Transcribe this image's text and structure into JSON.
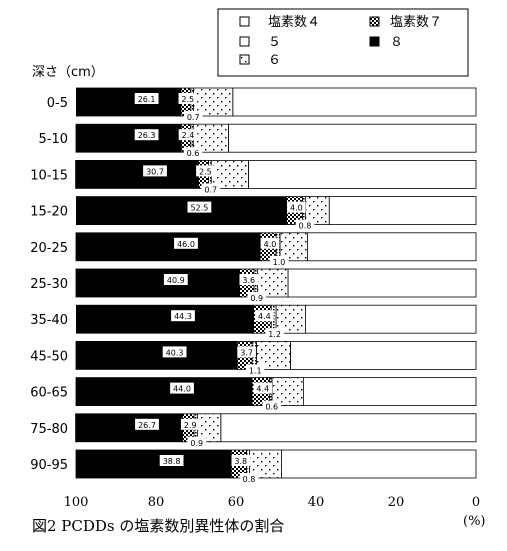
{
  "chart_data": {
    "type": "bar",
    "stacked": true,
    "orientation": "horizontal",
    "x_reversed": true,
    "title": "図2 PCDDs の塩素数別異性体の割合",
    "ylabel": "深さ（cm）",
    "xlabel": "(%)",
    "xlim": [
      0,
      100
    ],
    "x_ticks": [
      "100",
      "80",
      "60",
      "40",
      "20",
      "0"
    ],
    "legend_position": "top-right",
    "categories": [
      "0-5",
      "5-10",
      "10-15",
      "15-20",
      "20-25",
      "25-30",
      "35-40",
      "45-50",
      "60-65",
      "75-80",
      "90-95"
    ],
    "series": [
      {
        "name": "塩素数４",
        "pattern": "white",
        "values": [
          60.8,
          61.9,
          56.9,
          36.7,
          42.1,
          47.0,
          42.6,
          46.4,
          43.1,
          63.8,
          48.6
        ]
      },
      {
        "name": "５",
        "pattern": "light-dots",
        "values": [
          9.8,
          8.8,
          9.3,
          5.9,
          6.9,
          7.6,
          7.4,
          8.5,
          7.9,
          5.8,
          8.0
        ]
      },
      {
        "name": "６",
        "pattern": "dense-dots",
        "values": [
          0.7,
          0.6,
          0.7,
          0.8,
          1.0,
          0.9,
          1.2,
          1.1,
          0.6,
          0.9,
          0.8
        ]
      },
      {
        "name": "塩素数７",
        "pattern": "checker",
        "values": [
          2.5,
          2.4,
          2.5,
          4.0,
          4.0,
          3.6,
          4.4,
          3.7,
          4.4,
          2.9,
          3.8
        ]
      },
      {
        "name": "８",
        "pattern": "black",
        "values": [
          26.1,
          26.3,
          30.7,
          52.5,
          46.0,
          40.9,
          44.3,
          40.3,
          44.0,
          26.7,
          38.8
        ]
      }
    ],
    "value_labels": {
      "s4": [
        "60.8",
        "61.9",
        "56.9",
        "36.7",
        "42.1",
        "47.0",
        "42.6",
        "46.4",
        "43.1",
        "63.8",
        "48.6"
      ],
      "s5": [
        "9.8",
        "8.8",
        "9.3",
        "5.9",
        "6.9",
        "7.6",
        "7.4",
        "8.5",
        "7.9",
        "5.8",
        "8.0"
      ],
      "s6": [
        "0.7",
        "0.6",
        "0.7",
        "0.8",
        "1.0",
        "0.9",
        "1.2",
        "1.1",
        "0.6",
        "0.9",
        "0.8"
      ],
      "s7": [
        "2.5",
        "2.4",
        "2.5",
        "4.0",
        "4.0",
        "3.6",
        "4.4",
        "3.7",
        "4.4",
        "2.9",
        "3.8"
      ],
      "s8": [
        "26.1",
        "26.3",
        "30.7",
        "52.5",
        "46.0",
        "40.9",
        "44.3",
        "40.3",
        "44.0",
        "26.7",
        "38.8"
      ]
    }
  }
}
